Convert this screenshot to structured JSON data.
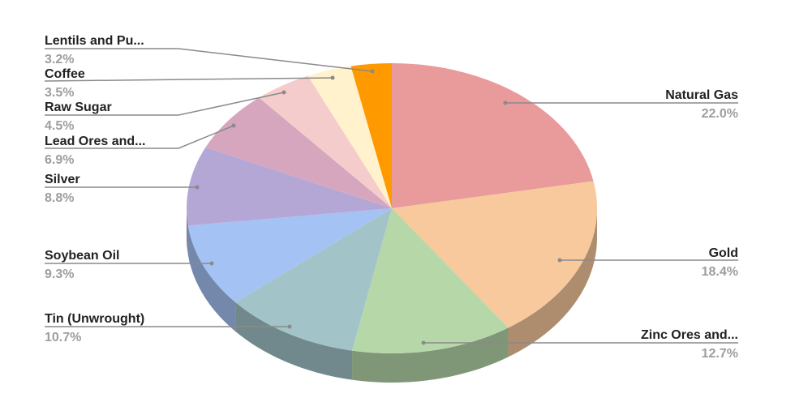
{
  "chart_data": {
    "type": "pie",
    "style": "3d",
    "title": "",
    "start_angle": "top, clockwise",
    "legend": "none (leader-line labels)",
    "slices": [
      {
        "label": "Natural Gas",
        "value": 22.0,
        "value_label": "22.0%",
        "color": "#e99a9a"
      },
      {
        "label": "Gold",
        "value": 18.4,
        "value_label": "18.4%",
        "color": "#f7c99d"
      },
      {
        "label": "Zinc Ores and...",
        "value": 12.7,
        "value_label": "12.7%",
        "color": "#b6d7a8"
      },
      {
        "label": "Tin (Unwrought)",
        "value": 10.7,
        "value_label": "10.7%",
        "color": "#a2c4c9"
      },
      {
        "label": "Soybean Oil",
        "value": 9.3,
        "value_label": "9.3%",
        "color": "#a4c2f4"
      },
      {
        "label": "Silver",
        "value": 8.8,
        "value_label": "8.8%",
        "color": "#b4a7d6"
      },
      {
        "label": "Lead Ores and...",
        "value": 6.9,
        "value_label": "6.9%",
        "color": "#d5a6bd"
      },
      {
        "label": "Raw Sugar",
        "value": 4.5,
        "value_label": "4.5%",
        "color": "#f4cccc"
      },
      {
        "label": "Coffee",
        "value": 3.5,
        "value_label": "3.5%",
        "color": "#fff2cc"
      },
      {
        "label": "Lentils and Pu...",
        "value": 3.2,
        "value_label": "3.2%",
        "color": "#ff9900"
      }
    ]
  }
}
